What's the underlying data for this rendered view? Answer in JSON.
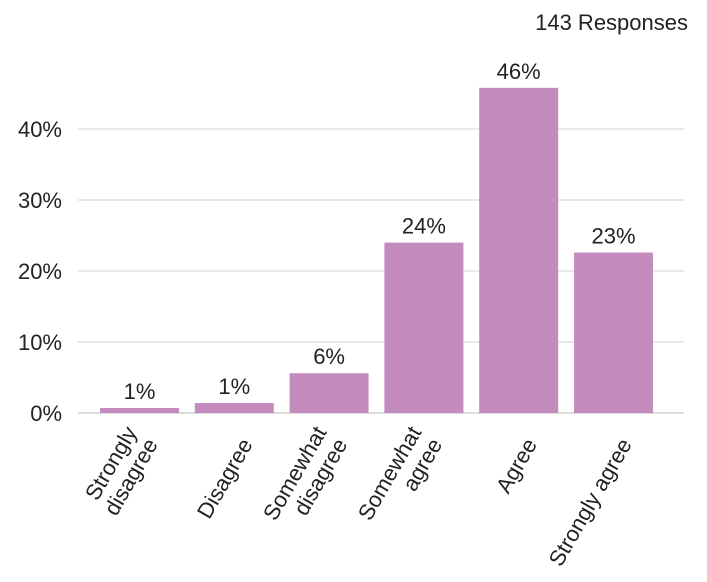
{
  "chart_data": {
    "type": "bar",
    "responses_label": "143 Responses",
    "categories": [
      [
        "Strongly",
        "disagree"
      ],
      [
        "Disagree"
      ],
      [
        "Somewhat",
        "disagree"
      ],
      [
        "Somewhat",
        "agree"
      ],
      [
        "Agree"
      ],
      [
        "Strongly agree"
      ]
    ],
    "values": [
      1,
      1,
      6,
      24,
      46,
      23
    ],
    "bar_values": [
      0.7,
      1.4,
      5.6,
      24.0,
      45.8,
      22.6
    ],
    "data_labels": [
      "1%",
      "1%",
      "6%",
      "24%",
      "46%",
      "23%"
    ],
    "y_ticks": [
      0,
      10,
      20,
      30,
      40
    ],
    "y_tick_labels": [
      "0%",
      "10%",
      "20%",
      "30%",
      "40%"
    ],
    "ylim": [
      0,
      46
    ],
    "grid": true,
    "colors": {
      "bar": "#c48bbe",
      "grid": "#e2e2e2",
      "axis": "#d0d0d0"
    }
  }
}
